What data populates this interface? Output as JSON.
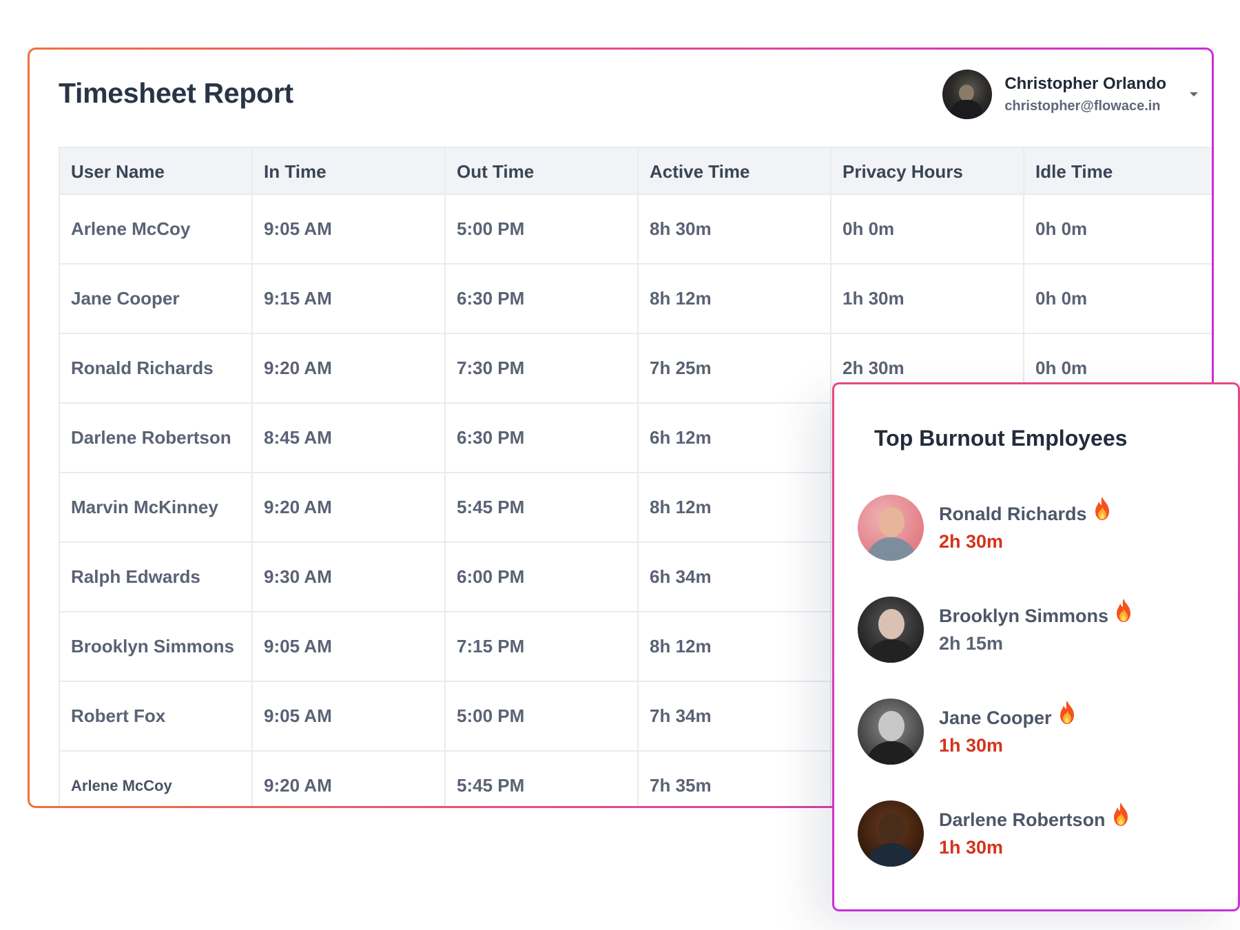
{
  "report": {
    "title": "Timesheet Report",
    "user": {
      "name": "Christopher Orlando",
      "email": "christopher@flowace.in"
    }
  },
  "table": {
    "columns": [
      "User Name",
      "In Time",
      "Out Time",
      "Active Time",
      "Privacy Hours",
      "Idle Time"
    ],
    "rows": [
      [
        "Arlene McCoy",
        "9:05 AM",
        "5:00 PM",
        "8h 30m",
        "0h 0m",
        "0h 0m"
      ],
      [
        "Jane Cooper",
        "9:15 AM",
        "6:30 PM",
        "8h 12m",
        "1h 30m",
        "0h 0m"
      ],
      [
        "Ronald Richards",
        "9:20 AM",
        "7:30 PM",
        "7h 25m",
        "2h 30m",
        "0h 0m"
      ],
      [
        "Darlene Robertson",
        "8:45 AM",
        "6:30 PM",
        "6h 12m",
        "",
        ""
      ],
      [
        "Marvin McKinney",
        "9:20 AM",
        "5:45 PM",
        "8h 12m",
        "",
        ""
      ],
      [
        "Ralph Edwards",
        "9:30 AM",
        "6:00 PM",
        "6h 34m",
        "",
        ""
      ],
      [
        "Brooklyn Simmons",
        "9:05 AM",
        "7:15 PM",
        "8h 12m",
        "",
        ""
      ],
      [
        "Robert Fox",
        "9:05 AM",
        "5:00 PM",
        "7h 34m",
        "",
        ""
      ],
      [
        "Arlene McCoy",
        "9:20 AM",
        "5:45 PM",
        "7h 35m",
        "",
        ""
      ]
    ]
  },
  "burnout": {
    "title": "Top Burnout Employees",
    "icon": "flame-icon",
    "employees": [
      {
        "name": "Ronald Richards",
        "hours": "2h 30m",
        "hours_color": "#d4331d"
      },
      {
        "name": "Brooklyn Simmons",
        "hours": "2h 15m",
        "hours_color": "#5a6275"
      },
      {
        "name": "Jane Cooper",
        "hours": "1h 30m",
        "hours_color": "#d4331d"
      },
      {
        "name": "Darlene Robertson",
        "hours": "1h 30m",
        "hours_color": "#d4331d"
      }
    ]
  },
  "colors": {
    "accent_gradient_start": "#f07040",
    "accent_gradient_end": "#c92fd6",
    "alert_red": "#d4331d"
  }
}
